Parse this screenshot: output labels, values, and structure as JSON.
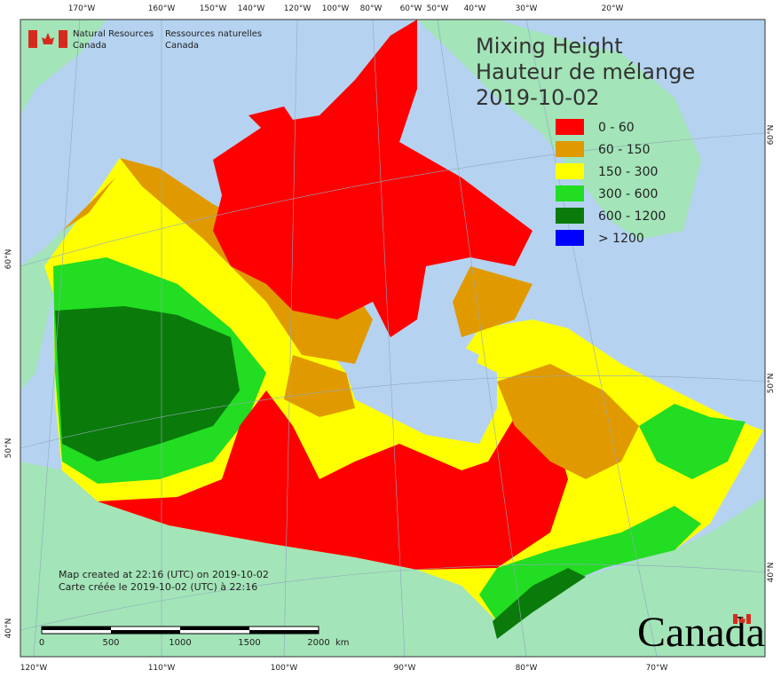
{
  "header": {
    "agency_en": [
      "Natural Resources",
      "Canada"
    ],
    "agency_fr": [
      "Ressources naturelles",
      "Canada"
    ]
  },
  "title": [
    "Mixing Height",
    "Hauteur de mélange",
    "2019-10-02"
  ],
  "legend": [
    {
      "label": "0 - 60",
      "color": "#ff0000"
    },
    {
      "label": "60 - 150",
      "color": "#e09a00"
    },
    {
      "label": "150 - 300",
      "color": "#ffff00"
    },
    {
      "label": "300 - 600",
      "color": "#22dd22"
    },
    {
      "label": "600 - 1200",
      "color": "#0a7a0a"
    },
    {
      "label": "> 1200",
      "color": "#0000ff"
    }
  ],
  "graticule": {
    "top": [
      "170°W",
      "160°W",
      "150°W",
      "140°W",
      "120°W",
      "100°W",
      "80°W",
      "60°W",
      "50°W",
      "40°W",
      "30°W",
      "20°W"
    ],
    "bottom": [
      "120°W",
      "110°W",
      "100°W",
      "90°W",
      "80°W",
      "70°W"
    ],
    "left": [
      "60°N",
      "50°N",
      "40°N"
    ],
    "right": [
      "60°N",
      "50°N",
      "40°N"
    ]
  },
  "notes": [
    "Map created at 22:16 (UTC) on 2019-10-02",
    "Carte créée le 2019-10-02 (UTC) à 22:16"
  ],
  "scale_bar": {
    "labels": [
      0,
      500,
      1000,
      1500,
      2000
    ],
    "unit": "km"
  },
  "wordmark": "Canada"
}
